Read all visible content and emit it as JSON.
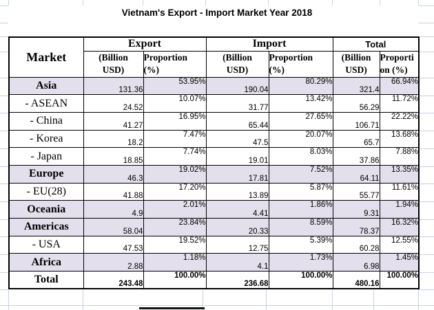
{
  "title": "Vietnam's Export - Import Market Year 2018",
  "colors": {
    "region_row_shade": "#e4dfec",
    "table_border": "#000000",
    "sheet_gridline": "#c8d0e2"
  },
  "table": {
    "market_header": "Market",
    "groups": [
      {
        "label": "Export",
        "billion": [
          "(Billion",
          "USD)"
        ],
        "proportion": [
          "Proportion",
          "(%)"
        ]
      },
      {
        "label": "Import",
        "billion": [
          "(Billion",
          "USD)"
        ],
        "proportion": [
          "Proportion",
          "(%)"
        ]
      },
      {
        "label": "Total",
        "billion": [
          "(Billion",
          "USD)"
        ],
        "proportion": [
          "Proporti",
          "on (%)"
        ]
      }
    ],
    "rows": [
      {
        "kind": "region",
        "market": "Asia",
        "export": "131.36",
        "export_pct": "53.95%",
        "import": "190.04",
        "import_pct": "80.29%",
        "total": "321.4",
        "total_pct": "66.94%"
      },
      {
        "kind": "sub",
        "market": "- ASEAN",
        "export": "24.52",
        "export_pct": "10.07%",
        "import": "31.77",
        "import_pct": "13.42%",
        "total": "56.29",
        "total_pct": "11.72%"
      },
      {
        "kind": "sub",
        "market": "- China",
        "export": "41.27",
        "export_pct": "16.95%",
        "import": "65.44",
        "import_pct": "27.65%",
        "total": "106.71",
        "total_pct": "22.22%"
      },
      {
        "kind": "sub",
        "market": "- Korea",
        "export": "18.2",
        "export_pct": "7.47%",
        "import": "47.5",
        "import_pct": "20.07%",
        "total": "65.7",
        "total_pct": "13.68%"
      },
      {
        "kind": "sub",
        "market": "- Japan",
        "export": "18.85",
        "export_pct": "7.74%",
        "import": "19.01",
        "import_pct": "8.03%",
        "total": "37.86",
        "total_pct": "7.88%"
      },
      {
        "kind": "region",
        "market": "Europe",
        "export": "46.3",
        "export_pct": "19.02%",
        "import": "17.81",
        "import_pct": "7.52%",
        "total": "64.11",
        "total_pct": "13.35%"
      },
      {
        "kind": "sub",
        "market": "- EU(28)",
        "export": "41.88",
        "export_pct": "17.20%",
        "import": "13.89",
        "import_pct": "5.87%",
        "total": "55.77",
        "total_pct": "11.61%"
      },
      {
        "kind": "region",
        "market": "Oceania",
        "export": "4.9",
        "export_pct": "2.01%",
        "import": "4.41",
        "import_pct": "1.86%",
        "total": "9.31",
        "total_pct": "1.94%"
      },
      {
        "kind": "region",
        "market": "Americas",
        "export": "58.04",
        "export_pct": "23.84%",
        "import": "20.33",
        "import_pct": "8.59%",
        "total": "78.37",
        "total_pct": "16.32%"
      },
      {
        "kind": "sub",
        "market": "- USA",
        "export": "47.53",
        "export_pct": "19.52%",
        "import": "12.75",
        "import_pct": "5.39%",
        "total": "60.28",
        "total_pct": "12.55%"
      },
      {
        "kind": "region",
        "market": "Africa",
        "export": "2.88",
        "export_pct": "1.18%",
        "import": "4.1",
        "import_pct": "1.73%",
        "total": "6.98",
        "total_pct": "1.45%"
      },
      {
        "kind": "total",
        "market": "Total",
        "export": "243.48",
        "export_pct": "100.00%",
        "import": "236.68",
        "import_pct": "100.00%",
        "total": "480.16",
        "total_pct": "100.00%"
      }
    ]
  }
}
